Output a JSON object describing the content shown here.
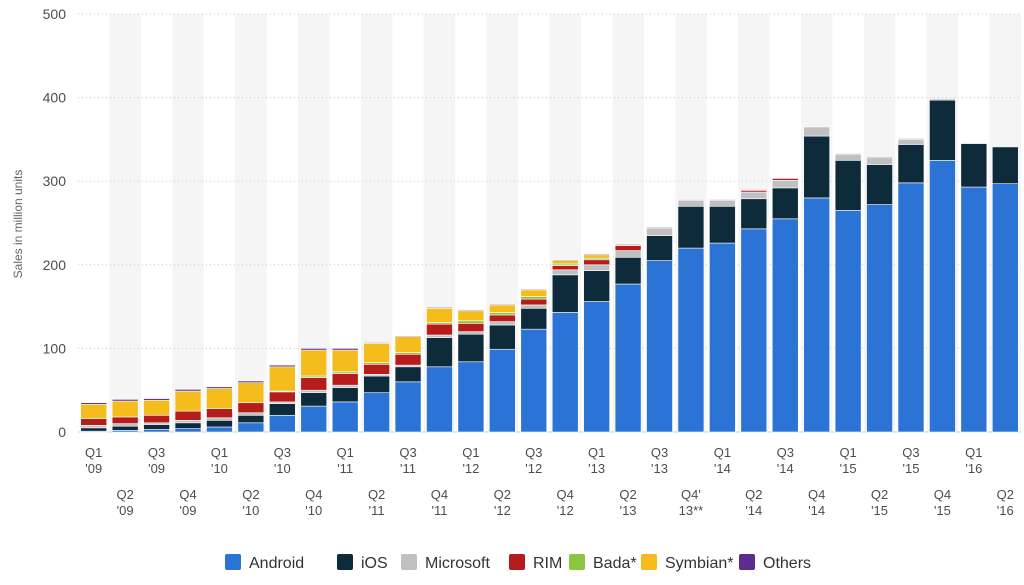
{
  "chart_data": {
    "type": "bar",
    "stacked": true,
    "title": "",
    "xlabel": "",
    "ylabel": "Sales in million units",
    "ylim": [
      0,
      500
    ],
    "yticks": [
      "0",
      "100",
      "200",
      "300",
      "400",
      "500"
    ],
    "grid": true,
    "legend_position": "bottom",
    "categories": [
      [
        "Q1",
        "'09"
      ],
      [
        "Q2",
        "'09"
      ],
      [
        "Q3",
        "'09"
      ],
      [
        "Q4",
        "'09"
      ],
      [
        "Q1",
        "'10"
      ],
      [
        "Q2",
        "'10"
      ],
      [
        "Q3",
        "'10"
      ],
      [
        "Q4",
        "'10"
      ],
      [
        "Q1",
        "'11"
      ],
      [
        "Q2",
        "'11"
      ],
      [
        "Q3",
        "'11"
      ],
      [
        "Q4",
        "'11"
      ],
      [
        "Q1",
        "'12"
      ],
      [
        "Q2",
        "'12"
      ],
      [
        "Q3",
        "'12"
      ],
      [
        "Q4",
        "'12"
      ],
      [
        "Q1",
        "'13"
      ],
      [
        "Q2",
        "'13"
      ],
      [
        "Q3",
        "'13"
      ],
      [
        "Q4'",
        "13**"
      ],
      [
        "Q1",
        "'14"
      ],
      [
        "Q2",
        "'14"
      ],
      [
        "Q3",
        "'14"
      ],
      [
        "Q4",
        "'14"
      ],
      [
        "Q1",
        "'15"
      ],
      [
        "Q2",
        "'15"
      ],
      [
        "Q3",
        "'15"
      ],
      [
        "Q4",
        "'15"
      ],
      [
        "Q1",
        "'16"
      ],
      [
        "Q2",
        "'16"
      ]
    ],
    "series": [
      {
        "name": "Android",
        "color": "#2b73d4",
        "values": [
          1,
          2,
          3,
          4,
          6,
          11,
          20,
          31,
          36,
          47,
          60,
          78,
          84,
          99,
          123,
          143,
          156,
          177,
          205,
          220,
          226,
          243,
          255,
          280,
          265,
          272,
          298,
          325,
          293,
          297
        ]
      },
      {
        "name": "iOS",
        "color": "#0e2b3b",
        "values": [
          4,
          5,
          6,
          7,
          8,
          9,
          14,
          16,
          17,
          20,
          18,
          35,
          33,
          29,
          25,
          45,
          37,
          32,
          30,
          50,
          44,
          36,
          37,
          74,
          60,
          48,
          46,
          72,
          52,
          44
        ]
      },
      {
        "name": "Microsoft",
        "color": "#c0c0c0",
        "values": [
          3,
          3,
          2,
          3,
          3,
          3,
          2,
          3,
          3,
          2,
          2,
          3,
          3,
          4,
          4,
          6,
          7,
          8,
          9,
          7,
          7,
          8,
          9,
          10,
          7,
          8,
          6,
          0,
          0,
          0
        ]
      },
      {
        "name": "RIM",
        "color": "#b71c1c",
        "values": [
          8,
          8,
          9,
          11,
          11,
          12,
          12,
          15,
          14,
          12,
          13,
          13,
          10,
          8,
          7,
          5,
          6,
          6,
          0,
          0,
          0,
          2,
          2,
          0,
          0,
          0,
          0,
          0,
          0,
          0
        ]
      },
      {
        "name": "Bada*",
        "color": "#8cc63f",
        "values": [
          0,
          0,
          0,
          0,
          0,
          0,
          1,
          2,
          2,
          2,
          2,
          2,
          3,
          3,
          3,
          2,
          2,
          0,
          0,
          0,
          0,
          0,
          0,
          0,
          0,
          0,
          0,
          0,
          0,
          0
        ]
      },
      {
        "name": "Symbian*",
        "color": "#f4bc1c",
        "values": [
          17,
          19,
          18,
          24,
          24,
          24,
          29,
          31,
          26,
          23,
          19,
          17,
          12,
          9,
          8,
          4,
          4,
          1,
          0,
          0,
          0,
          0,
          0,
          0,
          0,
          0,
          0,
          0,
          0,
          0
        ]
      },
      {
        "name": "Others",
        "color": "#5c2d91",
        "values": [
          2,
          2,
          2,
          2,
          2,
          2,
          2,
          2,
          2,
          1,
          1,
          1,
          1,
          1,
          1,
          1,
          1,
          1,
          1,
          1,
          1,
          1,
          1,
          1,
          1,
          1,
          1,
          1,
          0,
          0
        ]
      }
    ]
  }
}
